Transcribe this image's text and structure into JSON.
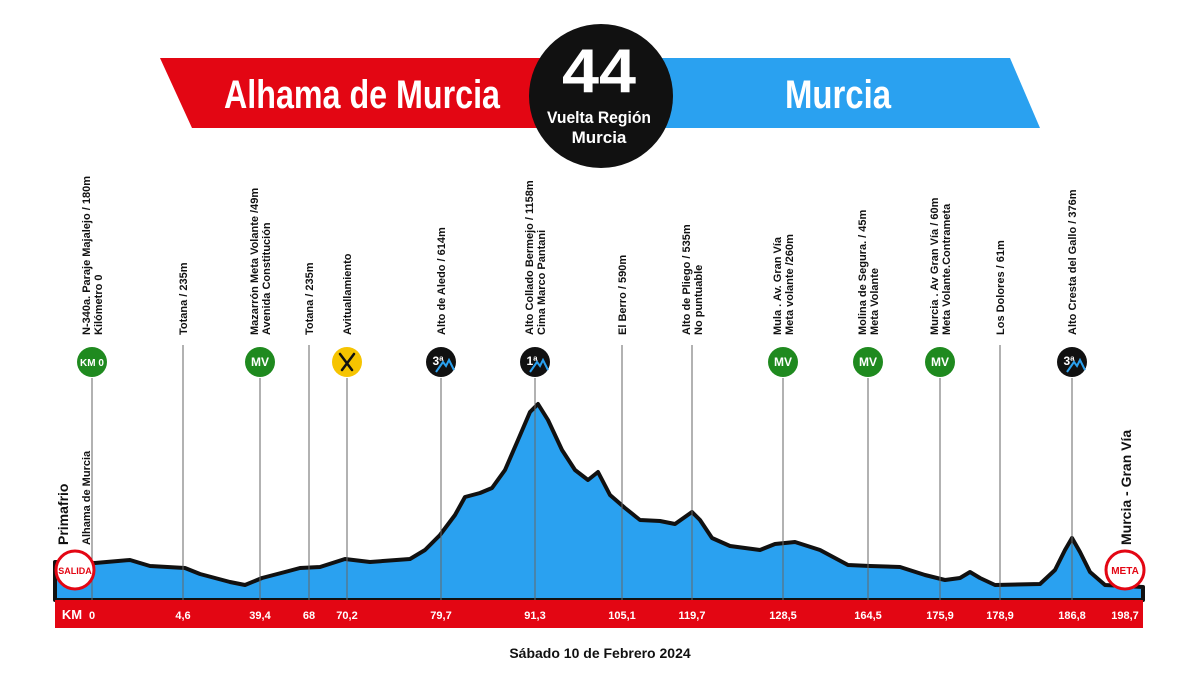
{
  "header": {
    "start_city": "Alhama de Murcia",
    "stage": "44",
    "race": [
      "Vuelta Región",
      "Murcia"
    ],
    "finish_city": "Murcia"
  },
  "start": {
    "lines": [
      "Primafrio",
      "Alhama de Murcia"
    ],
    "badge": "SALIDA"
  },
  "finish": {
    "lines": [
      "Murcia - Gran Vía"
    ],
    "badge": "META"
  },
  "points": [
    {
      "lines": [
        "N-340a. Paraje Majalejo / 180m",
        "Kilómetro 0"
      ],
      "badge": "KM 0",
      "km": "0"
    },
    {
      "lines": [
        "Totana / 235m"
      ],
      "km": "4,6"
    },
    {
      "lines": [
        "Mazarrón Meta Volante /49m",
        "Avenida Constitución"
      ],
      "badge": "MV",
      "km": "39,4"
    },
    {
      "lines": [
        "Totana / 235m"
      ],
      "km": "68"
    },
    {
      "lines": [
        "Avituallamiento"
      ],
      "km": "70,2"
    },
    {
      "lines": [
        "Alto de Aledo / 614m"
      ],
      "climb": "3ª",
      "km": "79,7"
    },
    {
      "lines": [
        "Alto Collado Bermejo / 1158m",
        "Cima Marco Pantani"
      ],
      "climb": "1ª",
      "km": "91,3"
    },
    {
      "lines": [
        "El Berro / 590m"
      ],
      "km": "105,1"
    },
    {
      "lines": [
        "Alto de Pliego / 535m",
        "No puntuable"
      ],
      "km": "119,7"
    },
    {
      "lines": [
        "Mula . Av. Gran Vía",
        "Meta volante /260m"
      ],
      "badge": "MV",
      "km": "128,5"
    },
    {
      "lines": [
        "Molina de Segura. / 45m",
        "Meta Volante"
      ],
      "badge": "MV",
      "km": "164,5"
    },
    {
      "lines": [
        "Murcia . Av Gran Vía / 60m",
        "Meta Volante.Contrameta"
      ],
      "badge": "MV",
      "km": "175,9"
    },
    {
      "lines": [
        "Los Dolores / 61m"
      ],
      "km": "178,9"
    },
    {
      "lines": [
        "Alto Cresta del Gallo / 376m"
      ],
      "climb": "3ª",
      "km": "186,8"
    }
  ],
  "km_label": "KM",
  "final_km": "198,7",
  "date": "Sábado 10 de Febrero 2024"
}
